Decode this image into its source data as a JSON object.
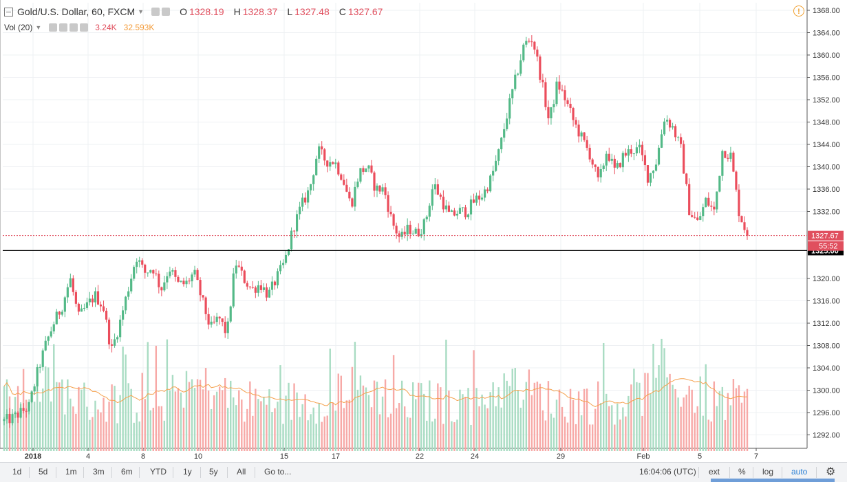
{
  "header": {
    "symbol": "Gold/U.S. Dollar, 60, FXCM",
    "open_label": "O",
    "open": "1328.19",
    "high_label": "H",
    "high": "1328.37",
    "low_label": "L",
    "low": "1327.48",
    "close_label": "C",
    "close": "1327.67",
    "vol_label": "Vol (20)",
    "vol_value": "3.24K",
    "vol_ma": "32.593K",
    "warning_icon": "!"
  },
  "price_axis": {
    "ticks": [
      "1368.00",
      "1364.00",
      "1360.00",
      "1356.00",
      "1352.00",
      "1348.00",
      "1344.00",
      "1340.00",
      "1336.00",
      "1332.00",
      "1320.00",
      "1316.00",
      "1312.00",
      "1308.00",
      "1304.00",
      "1300.00",
      "1296.00",
      "1292.00"
    ],
    "last_price_label": "1327.67",
    "countdown_label": "55:52",
    "line_label": "1325.00"
  },
  "time_axis": {
    "ticks": [
      "2018",
      "4",
      "8",
      "10",
      "15",
      "17",
      "22",
      "24",
      "29",
      "Feb",
      "5",
      "7"
    ]
  },
  "bottom_bar": {
    "ranges": [
      "1d",
      "5d",
      "1m",
      "3m",
      "6m",
      "YTD",
      "1y",
      "5y",
      "All"
    ],
    "goto": "Go to...",
    "clock": "16:04:06 (UTC)",
    "ext": "ext",
    "pct": "%",
    "log": "log",
    "auto": "auto",
    "settings_icon": "gear-icon"
  },
  "colors": {
    "up": "#53b987",
    "down": "#eb4d5c",
    "vol_up": "#a9dcc3",
    "vol_down": "#f7a9a7",
    "vol_ma": "#f5a04b",
    "last_price": "#e04f5e"
  },
  "chart_data": {
    "type": "candlestick",
    "title": "Gold/U.S. Dollar, 60, FXCM",
    "interval": "60",
    "y_range": [
      1289,
      1370
    ],
    "x_ticks": [
      "2018",
      "4",
      "8",
      "10",
      "15",
      "17",
      "22",
      "24",
      "29",
      "Feb",
      "5",
      "7"
    ],
    "horizontal_line": 1325.0,
    "last_price": 1327.67,
    "volume_ma_period": 20,
    "close_path_approx": [
      [
        0,
        1294.5
      ],
      [
        1,
        1295
      ],
      [
        2,
        1296
      ],
      [
        3,
        1297
      ],
      [
        4,
        1303
      ],
      [
        5,
        1308
      ],
      [
        6,
        1312
      ],
      [
        7,
        1315
      ],
      [
        8,
        1320
      ],
      [
        9,
        1313
      ],
      [
        10,
        1315
      ],
      [
        11,
        1317
      ],
      [
        12,
        1315
      ],
      [
        13,
        1307
      ],
      [
        14,
        1312
      ],
      [
        15,
        1318
      ],
      [
        16,
        1324
      ],
      [
        17,
        1321
      ],
      [
        18,
        1322
      ],
      [
        19,
        1318
      ],
      [
        20,
        1322
      ],
      [
        21,
        1319
      ],
      [
        22,
        1319
      ],
      [
        23,
        1321
      ],
      [
        24,
        1316
      ],
      [
        25,
        1311
      ],
      [
        26,
        1313
      ],
      [
        27,
        1310
      ],
      [
        28,
        1323
      ],
      [
        29,
        1320
      ],
      [
        30,
        1318
      ],
      [
        31,
        1319
      ],
      [
        32,
        1317
      ],
      [
        33,
        1320
      ],
      [
        34,
        1323
      ],
      [
        35,
        1329
      ],
      [
        36,
        1333
      ],
      [
        37,
        1336
      ],
      [
        38,
        1343
      ],
      [
        39,
        1341
      ],
      [
        40,
        1341
      ],
      [
        41,
        1338
      ],
      [
        42,
        1333
      ],
      [
        43,
        1339
      ],
      [
        44,
        1340
      ],
      [
        45,
        1336
      ],
      [
        46,
        1336
      ],
      [
        47,
        1330
      ],
      [
        48,
        1327
      ],
      [
        49,
        1329
      ],
      [
        50,
        1328
      ],
      [
        51,
        1330
      ],
      [
        52,
        1337
      ],
      [
        53,
        1334
      ],
      [
        54,
        1331
      ],
      [
        55,
        1332
      ],
      [
        56,
        1332
      ],
      [
        57,
        1334
      ],
      [
        58,
        1335
      ],
      [
        59,
        1338
      ],
      [
        60,
        1343
      ],
      [
        61,
        1350
      ],
      [
        62,
        1356
      ],
      [
        63,
        1362
      ],
      [
        64,
        1363
      ],
      [
        65,
        1356
      ],
      [
        66,
        1348
      ],
      [
        67,
        1355
      ],
      [
        68,
        1352
      ],
      [
        69,
        1348
      ],
      [
        70,
        1345
      ],
      [
        71,
        1342
      ],
      [
        72,
        1337
      ],
      [
        73,
        1343
      ],
      [
        74,
        1339
      ],
      [
        75,
        1342
      ],
      [
        76,
        1343
      ],
      [
        77,
        1343
      ],
      [
        78,
        1338
      ],
      [
        79,
        1341
      ],
      [
        80,
        1349
      ],
      [
        81,
        1347
      ],
      [
        82,
        1343
      ],
      [
        83,
        1332
      ],
      [
        84,
        1330
      ],
      [
        85,
        1334
      ],
      [
        86,
        1332
      ],
      [
        87,
        1343
      ],
      [
        88,
        1342
      ],
      [
        89,
        1332
      ],
      [
        90,
        1327.67
      ]
    ],
    "volume_max_approx": 11000
  }
}
